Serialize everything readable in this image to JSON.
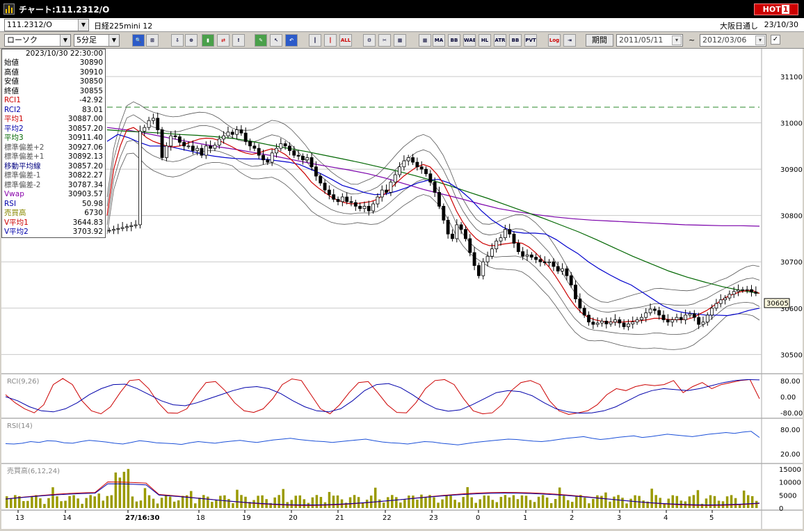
{
  "window": {
    "title": "チャート:111.2312/O",
    "hot_label": "HOT",
    "hot_num": "1"
  },
  "issue": {
    "code": "111.2312/O",
    "name": "日経225mini 12",
    "session": "大阪日通し",
    "date": "23/10/30"
  },
  "toolbar": {
    "chart_type": "ローソク",
    "interval": "5分足",
    "period_label": "期間",
    "date_from": "2011/05/11",
    "date_to": "2012/03/06",
    "tilde": "~",
    "buttons": [
      "MA",
      "BB",
      "WAE",
      "HL",
      "ATR",
      "BB",
      "PVT",
      "ALL",
      "Log"
    ]
  },
  "info": {
    "datetime": "2023/10/30  22:30:00",
    "rows": [
      {
        "label": "始値",
        "value": "30890",
        "color": "#000000"
      },
      {
        "label": "高値",
        "value": "30910",
        "color": "#000000"
      },
      {
        "label": "安値",
        "value": "30850",
        "color": "#000000"
      },
      {
        "label": "終値",
        "value": "30855",
        "color": "#000000"
      },
      {
        "label": "RCI1",
        "value": "-42.92",
        "color": "#cc0000"
      },
      {
        "label": "RCI2",
        "value": "83.01",
        "color": "#0000aa"
      },
      {
        "label": "平均1",
        "value": "30887.00",
        "color": "#cc0000"
      },
      {
        "label": "平均2",
        "value": "30857.20",
        "color": "#0000aa"
      },
      {
        "label": "平均3",
        "value": "30911.40",
        "color": "#006600"
      },
      {
        "label": "標準偏差+2",
        "value": "30927.06",
        "color": "#555555"
      },
      {
        "label": "標準偏差+1",
        "value": "30892.13",
        "color": "#555555"
      },
      {
        "label": "移動平均線",
        "value": "30857.20",
        "color": "#000080"
      },
      {
        "label": "標準偏差-1",
        "value": "30822.27",
        "color": "#555555"
      },
      {
        "label": "標準偏差-2",
        "value": "30787.34",
        "color": "#555555"
      },
      {
        "label": "Vwap",
        "value": "30903.57",
        "color": "#8800aa"
      },
      {
        "label": "RSI",
        "value": "50.98",
        "color": "#0000aa"
      },
      {
        "label": "売買高",
        "value": "6730",
        "color": "#888800"
      },
      {
        "label": "V平均1",
        "value": "3644.83",
        "color": "#cc0000"
      },
      {
        "label": "V平均2",
        "value": "3703.92",
        "color": "#0000aa"
      }
    ]
  },
  "panes": {
    "rci_label": "RCI(9,26)",
    "rsi_label": "RSI(14)",
    "vol_label": "売買高(6,12,24)"
  },
  "price_axis": {
    "ticks": [
      "31100",
      "31000",
      "30900",
      "30800",
      "30700",
      "30600",
      "30500"
    ],
    "current": "30605"
  },
  "rci_axis": [
    "80.00",
    "0.00",
    "-80.00"
  ],
  "rsi_axis": [
    "80.00",
    "20.00"
  ],
  "vol_axis": [
    "15000",
    "10000",
    "5000",
    "0"
  ],
  "time_axis": [
    "13",
    "14",
    "27/16:30",
    "18",
    "19",
    "20",
    "21",
    "22",
    "23",
    "0",
    "1",
    "2",
    "3",
    "4",
    "5"
  ],
  "chart_data": {
    "type": "line",
    "title": "",
    "x_label": "",
    "ylim": [
      30460,
      31160
    ],
    "close": [
      30768,
      30770,
      30772,
      30774,
      30776,
      30778,
      30780,
      30982,
      30990,
      31005,
      31010,
      30985,
      30925,
      30950,
      30972,
      30970,
      30958,
      30950,
      30950,
      30940,
      30945,
      30930,
      30950,
      30945,
      30952,
      30965,
      30972,
      30980,
      30975,
      30985,
      30978,
      30960,
      30950,
      30945,
      30930,
      30920,
      30915,
      30935,
      30945,
      30955,
      30950,
      30940,
      30930,
      30928,
      30920,
      30925,
      30905,
      30885,
      30870,
      30855,
      30845,
      30835,
      30830,
      30840,
      30830,
      30828,
      30820,
      30815,
      30820,
      30810,
      30825,
      30840,
      30855,
      30850,
      30872,
      30888,
      30905,
      30918,
      30925,
      30915,
      30905,
      30900,
      30890,
      30872,
      30850,
      30820,
      30790,
      30760,
      30750,
      30780,
      30770,
      30750,
      30720,
      30692,
      30670,
      30700,
      30712,
      30728,
      30745,
      30752,
      30770,
      30760,
      30740,
      30722,
      30712,
      30715,
      30710,
      30705,
      30700,
      30698,
      30700,
      30690,
      30680,
      30685,
      30670,
      30650,
      30620,
      30600,
      30585,
      30570,
      30565,
      30568,
      30572,
      30566,
      30570,
      30575,
      30568,
      30560,
      30566,
      30570,
      30575,
      30580,
      30590,
      30598,
      30595,
      30585,
      30575,
      30570,
      30575,
      30580,
      30575,
      30585,
      30588,
      30580,
      30565,
      30570,
      30585,
      30600,
      30610,
      30618,
      30622,
      30630,
      30636,
      30639,
      30640,
      30640,
      30635,
      30632
    ],
    "ma_fast": [
      30800,
      30900,
      30950,
      30985,
      30990,
      30980,
      30968,
      30960,
      30955,
      30950,
      30948,
      30950,
      30955,
      30960,
      30965,
      30967,
      30966,
      30962,
      30955,
      30948,
      30940,
      30935,
      30932,
      30935,
      30940,
      30944,
      30940,
      30932,
      30920,
      30905,
      30890,
      30872,
      30860,
      30850,
      30840,
      30833,
      30828,
      30825,
      30826,
      30828,
      30830,
      30835,
      30845,
      30858,
      30872,
      30885,
      30895,
      30905,
      30910,
      30905,
      30890,
      30870,
      30842,
      30810,
      30785,
      30765,
      30750,
      30740,
      30735,
      30735,
      30738,
      30740,
      30742,
      30740,
      30732,
      30720,
      30705,
      30690,
      30670,
      30648,
      30625,
      30605,
      30590,
      30580,
      30575,
      30572,
      30570,
      30570,
      30570,
      30571,
      30572,
      30573,
      30575,
      30578,
      30578,
      30576,
      30575,
      30575,
      30576,
      30580,
      30588,
      30595,
      30605,
      30615,
      30624,
      30630,
      30635,
      30638,
      30638,
      30632
    ],
    "ma_mid": [
      30960,
      30975,
      30968,
      30958,
      30950,
      30950,
      30948,
      30943,
      30938,
      30932,
      30928,
      30925,
      30923,
      30922,
      30922,
      30921,
      30918,
      30915,
      30910,
      30900,
      30890,
      30878,
      30865,
      30858,
      30850,
      30845,
      30846,
      30852,
      30860,
      30870,
      30876,
      30878,
      30870,
      30855,
      30835,
      30810,
      30790,
      30775,
      30765,
      30762,
      30762,
      30760,
      30748,
      30732,
      30718,
      30700,
      30685,
      30672,
      30660,
      30650,
      30635,
      30620,
      30605,
      30595,
      30590,
      30588,
      30585,
      30585,
      30584,
      30588,
      30595,
      30600
    ],
    "ma_slow": [
      30985,
      30982,
      30980,
      30978,
      30975,
      30973,
      30970,
      30966,
      30960,
      30952,
      30945,
      30938,
      30930,
      30922,
      30914,
      30905,
      30896,
      30886,
      30875,
      30863,
      30850,
      30837,
      30823,
      30809,
      30795,
      30780,
      30765,
      30748,
      30730,
      30712,
      30696,
      30680,
      30667,
      30656,
      30646,
      30638,
      30632
    ],
    "vwap": [
      30990,
      30985,
      30978,
      30970,
      30962,
      30955,
      30948,
      30942,
      30935,
      30928,
      30920,
      30912,
      30905,
      30898,
      30890,
      30880,
      30868,
      30856,
      30846,
      30836,
      30825,
      30815,
      30808,
      30802,
      30797,
      30793,
      30790,
      30788,
      30786,
      30784,
      30782,
      30780,
      30779,
      30778,
      30778,
      30777
    ],
    "rci1": [
      10,
      -30,
      -60,
      -80,
      -40,
      60,
      90,
      60,
      -20,
      -70,
      -85,
      -50,
      20,
      80,
      85,
      40,
      -30,
      -80,
      -82,
      -60,
      10,
      70,
      75,
      30,
      -30,
      -70,
      -78,
      -60,
      -10,
      60,
      88,
      80,
      10,
      -60,
      -85,
      -40,
      20,
      70,
      75,
      20,
      -40,
      -78,
      -80,
      -30,
      40,
      80,
      85,
      60,
      -10,
      -70,
      -85,
      -80,
      -40,
      30,
      70,
      80,
      60,
      -20,
      -70,
      -88,
      -80,
      -70,
      -40,
      10,
      40,
      30,
      50,
      60,
      55,
      60,
      80,
      20,
      50,
      70,
      40,
      60,
      70,
      80,
      85,
      -10
    ],
    "rci2": [
      0,
      -20,
      -50,
      -70,
      -75,
      -60,
      -30,
      10,
      40,
      60,
      62,
      40,
      10,
      -20,
      -40,
      -45,
      -30,
      -10,
      10,
      30,
      45,
      50,
      40,
      15,
      -20,
      -50,
      -70,
      -75,
      -60,
      -20,
      30,
      60,
      65,
      45,
      10,
      -30,
      -60,
      -72,
      -65,
      -40,
      -10,
      20,
      30,
      25,
      5,
      -30,
      -60,
      -75,
      -82,
      -80,
      -70,
      -50,
      -20,
      10,
      30,
      40,
      35,
      30,
      40,
      55,
      70,
      80,
      85,
      83
    ],
    "rsi": [
      45,
      44,
      46,
      50,
      48,
      52,
      51,
      47,
      46,
      50,
      53,
      51,
      49,
      46,
      44,
      48,
      52,
      50,
      47,
      46,
      45,
      43,
      47,
      50,
      48,
      46,
      49,
      51,
      53,
      50,
      48,
      51,
      54,
      56,
      58,
      55,
      53,
      51,
      50,
      48,
      50,
      52,
      54,
      56,
      52,
      49,
      47,
      46,
      44,
      47,
      50,
      49,
      46,
      44,
      42,
      45,
      48,
      50,
      52,
      54,
      56,
      55,
      53,
      51,
      50,
      52,
      55,
      58,
      60,
      62,
      58,
      55,
      57,
      60,
      62,
      64,
      60,
      62,
      65,
      68,
      66,
      64,
      62,
      65,
      68,
      70,
      72,
      70,
      73,
      75,
      60
    ]
  },
  "colors": {
    "candle_up": "#ffffff",
    "candle_down": "#000000",
    "ma_fast": "#cc0000",
    "ma_mid": "#0000cc",
    "ma_slow": "#006600",
    "vwap": "#7a00aa",
    "band": "#555555",
    "rci1": "#cc0000",
    "rci2": "#0000aa",
    "rsi": "#1a4fd8",
    "vol_bar": "#9a9a00"
  }
}
